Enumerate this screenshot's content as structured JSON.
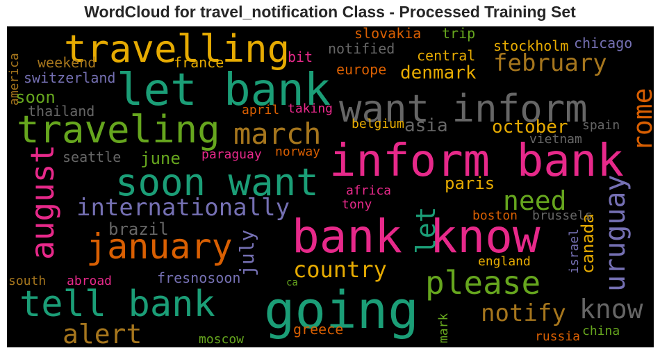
{
  "chart_data": {
    "type": "wordcloud",
    "title": "WordCloud for travel_notification Class - Processed Training Set",
    "colors": {
      "green": "#1b9e77",
      "orange": "#d95f02",
      "purple": "#7570b3",
      "pink": "#e7298a",
      "lime": "#66a61e",
      "gold": "#e6ab02",
      "brown": "#a6761d",
      "gray": "#666666"
    },
    "words": [
      {
        "text": "travelling",
        "color": "#e6ab02",
        "vertical": false
      },
      {
        "text": "let bank",
        "color": "#1b9e77",
        "vertical": false
      },
      {
        "text": "want inform",
        "color": "#666666",
        "vertical": false
      },
      {
        "text": "traveling",
        "color": "#66a61e",
        "vertical": false
      },
      {
        "text": "march",
        "color": "#a6761d",
        "vertical": false
      },
      {
        "text": "inform bank",
        "color": "#e7298a",
        "vertical": false
      },
      {
        "text": "soon want",
        "color": "#1b9e77",
        "vertical": false
      },
      {
        "text": "internationally",
        "color": "#7570b3",
        "vertical": false
      },
      {
        "text": "january",
        "color": "#d95f02",
        "vertical": false
      },
      {
        "text": "bank know",
        "color": "#e7298a",
        "vertical": false
      },
      {
        "text": "going",
        "color": "#1b9e77",
        "vertical": false
      },
      {
        "text": "tell bank",
        "color": "#1b9e77",
        "vertical": false
      },
      {
        "text": "please",
        "color": "#66a61e",
        "vertical": false
      },
      {
        "text": "alert",
        "color": "#a6761d",
        "vertical": false
      },
      {
        "text": "know",
        "color": "#666666",
        "vertical": false
      },
      {
        "text": "notify",
        "color": "#a6761d",
        "vertical": false
      },
      {
        "text": "country",
        "color": "#e6ab02",
        "vertical": false
      },
      {
        "text": "need",
        "color": "#66a61e",
        "vertical": false
      },
      {
        "text": "february",
        "color": "#a6761d",
        "vertical": false
      },
      {
        "text": "august",
        "color": "#e7298a",
        "vertical": true
      },
      {
        "text": "let",
        "color": "#1b9e77",
        "vertical": true
      },
      {
        "text": "uruguay",
        "color": "#7570b3",
        "vertical": true
      },
      {
        "text": "rome",
        "color": "#d95f02",
        "vertical": true
      },
      {
        "text": "july",
        "color": "#7570b3",
        "vertical": true
      },
      {
        "text": "canada",
        "color": "#e6ab02",
        "vertical": true
      },
      {
        "text": "denmark",
        "color": "#e6ab02",
        "vertical": false
      },
      {
        "text": "asia",
        "color": "#666666",
        "vertical": false
      },
      {
        "text": "october",
        "color": "#e6ab02",
        "vertical": false
      },
      {
        "text": "paris",
        "color": "#e6ab02",
        "vertical": false
      },
      {
        "text": "june",
        "color": "#66a61e",
        "vertical": false
      },
      {
        "text": "brazil",
        "color": "#666666",
        "vertical": false
      },
      {
        "text": "soon",
        "color": "#66a61e",
        "vertical": false
      },
      {
        "text": "weekend",
        "color": "#a6761d",
        "vertical": false
      },
      {
        "text": "switzerland",
        "color": "#7570b3",
        "vertical": false
      },
      {
        "text": "thailand",
        "color": "#666666",
        "vertical": false
      },
      {
        "text": "seattle",
        "color": "#666666",
        "vertical": false
      },
      {
        "text": "france",
        "color": "#e6ab02",
        "vertical": false
      },
      {
        "text": "bit",
        "color": "#e7298a",
        "vertical": false
      },
      {
        "text": "slovakia",
        "color": "#d95f02",
        "vertical": false
      },
      {
        "text": "trip",
        "color": "#66a61e",
        "vertical": false
      },
      {
        "text": "notified",
        "color": "#666666",
        "vertical": false
      },
      {
        "text": "europe",
        "color": "#d95f02",
        "vertical": false
      },
      {
        "text": "central",
        "color": "#e6ab02",
        "vertical": false
      },
      {
        "text": "stockholm",
        "color": "#e6ab02",
        "vertical": false
      },
      {
        "text": "chicago",
        "color": "#7570b3",
        "vertical": false
      },
      {
        "text": "april",
        "color": "#d95f02",
        "vertical": false
      },
      {
        "text": "taking",
        "color": "#e7298a",
        "vertical": false
      },
      {
        "text": "belgium",
        "color": "#e6ab02",
        "vertical": false
      },
      {
        "text": "spain",
        "color": "#666666",
        "vertical": false
      },
      {
        "text": "vietnam",
        "color": "#666666",
        "vertical": false
      },
      {
        "text": "paraguay",
        "color": "#e7298a",
        "vertical": false
      },
      {
        "text": "norway",
        "color": "#d95f02",
        "vertical": false
      },
      {
        "text": "africa",
        "color": "#e7298a",
        "vertical": false
      },
      {
        "text": "tony",
        "color": "#e7298a",
        "vertical": false
      },
      {
        "text": "boston",
        "color": "#d95f02",
        "vertical": false
      },
      {
        "text": "brussels",
        "color": "#666666",
        "vertical": false
      },
      {
        "text": "england",
        "color": "#e6ab02",
        "vertical": false
      },
      {
        "text": "israel",
        "color": "#7570b3",
        "vertical": true
      },
      {
        "text": "fresnosoon",
        "color": "#7570b3",
        "vertical": false
      },
      {
        "text": "south",
        "color": "#a6761d",
        "vertical": false
      },
      {
        "text": "abroad",
        "color": "#e7298a",
        "vertical": false
      },
      {
        "text": "ca",
        "color": "#66a61e",
        "vertical": false
      },
      {
        "text": "greece",
        "color": "#d95f02",
        "vertical": false
      },
      {
        "text": "mark",
        "color": "#66a61e",
        "vertical": true
      },
      {
        "text": "moscow",
        "color": "#66a61e",
        "vertical": false
      },
      {
        "text": "china",
        "color": "#66a61e",
        "vertical": false
      },
      {
        "text": "russia",
        "color": "#d95f02",
        "vertical": false
      },
      {
        "text": "america",
        "color": "#a6761d",
        "vertical": true
      }
    ]
  }
}
